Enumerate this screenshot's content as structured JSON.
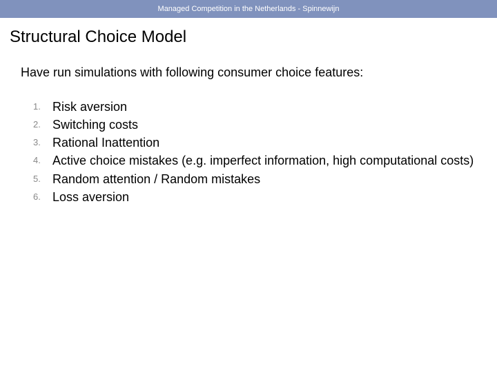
{
  "colors": {
    "header_bg": "#8092bd",
    "header_text": "#ffffff",
    "body_bg": "#ffffff",
    "title_color": "#000000",
    "text_color": "#000000",
    "list_number_color": "#888888"
  },
  "typography": {
    "header_fontsize": 11,
    "title_fontsize": 24,
    "body_fontsize": 18,
    "list_number_fontsize": 13
  },
  "header": {
    "text": "Managed Competition in the Netherlands - Spinnewijn"
  },
  "title": "Structural Choice Model",
  "intro": "Have run simulations with following consumer choice features:",
  "items": [
    "Risk aversion",
    "Switching costs",
    "Rational Inattention",
    "Active choice mistakes (e.g. imperfect information, high computational costs)",
    "Random attention / Random mistakes",
    "Loss aversion"
  ]
}
